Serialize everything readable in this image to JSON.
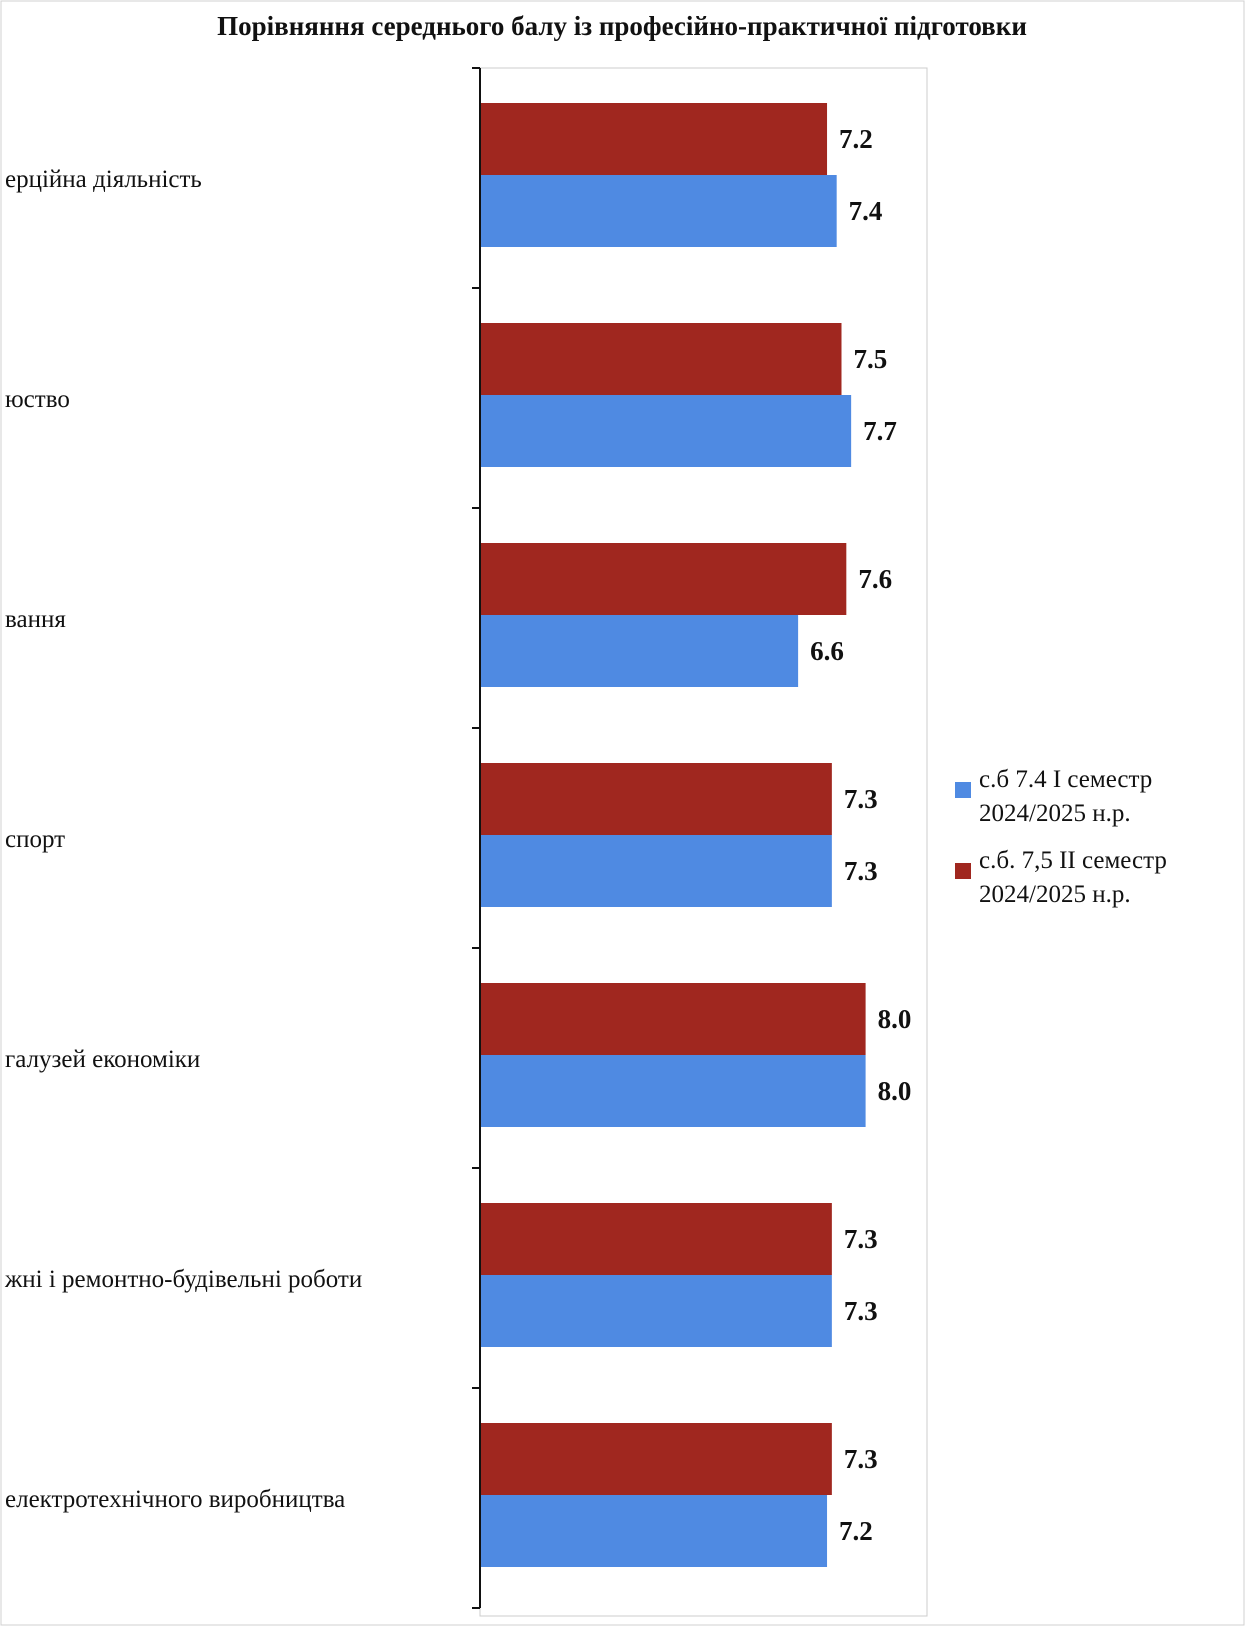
{
  "chart_data": {
    "type": "bar",
    "orientation": "horizontal",
    "title": "Порівняння середнього балу із професійно-практичної підготовки",
    "categories": [
      "ерційна діяльність",
      "юство",
      "вання",
      "спорт",
      "галузей економіки",
      "жні і ремонтно-будівельні роботи",
      "електротехнічного виробництва"
    ],
    "series": [
      {
        "name": "с.б 7.4 I семестр 2024/2025 н.р.",
        "legend_lines": [
          "с.б 7.4 I семестр",
          "2024/2025 н.р."
        ],
        "color": "#4f8ae2",
        "values": [
          7.4,
          7.7,
          6.6,
          7.3,
          8.0,
          7.3,
          7.2
        ],
        "labels": [
          "7.4",
          "7.7",
          "6.6",
          "7.3",
          "8.0",
          "7.3",
          "7.2"
        ]
      },
      {
        "name": "с.б. 7,5 II семестр 2024/2025 н.р.",
        "legend_lines": [
          "с.б. 7,5 II семестр",
          "2024/2025 н.р."
        ],
        "color": "#a0271f",
        "values": [
          7.2,
          7.5,
          7.6,
          7.3,
          8.0,
          7.3,
          7.3
        ],
        "labels": [
          "7.2",
          "7.5",
          "7.6",
          "7.3",
          "8.0",
          "7.3",
          "7.3"
        ]
      }
    ],
    "xlim": [
      0,
      8.9
    ],
    "xlabel": "",
    "ylabel": "",
    "grid": false,
    "legend": "right"
  }
}
